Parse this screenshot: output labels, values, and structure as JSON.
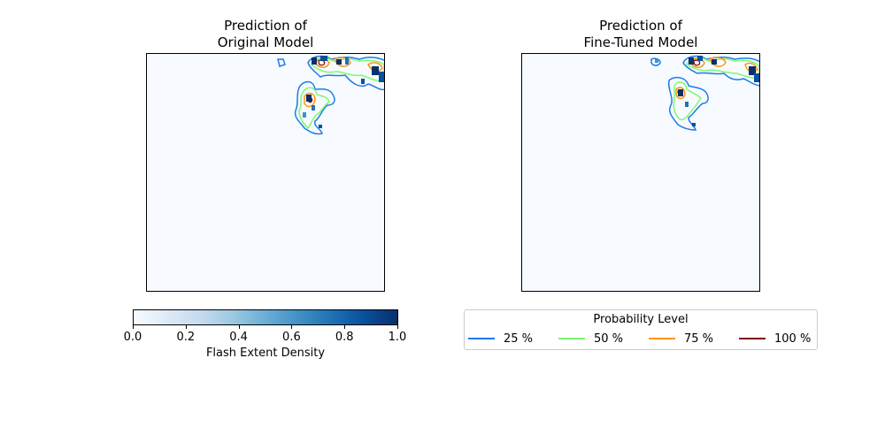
{
  "chart_data": [
    {
      "type": "heatmap",
      "title": "Prediction of\nOriginal Model",
      "xlabel": "",
      "ylabel": "",
      "colormap": "Blues",
      "background_color": "#f7fbff"
    },
    {
      "type": "heatmap",
      "title": "Prediction of\nFine-Tuned Model",
      "xlabel": "",
      "ylabel": "",
      "colormap": "Blues",
      "background_color": "#f7fbff"
    }
  ],
  "colorbar": {
    "label": "Flash Extent Density",
    "ticks": [
      "0.0",
      "0.2",
      "0.4",
      "0.6",
      "0.8",
      "1.0"
    ],
    "range": [
      0.0,
      1.0
    ]
  },
  "legend": {
    "title": "Probability Level",
    "entries": [
      {
        "label": "25 %",
        "color": "#1e7be8"
      },
      {
        "label": "50 %",
        "color": "#7dfa70"
      },
      {
        "label": "75 %",
        "color": "#ff9419"
      },
      {
        "label": "100 %",
        "color": "#7f0000"
      }
    ]
  }
}
